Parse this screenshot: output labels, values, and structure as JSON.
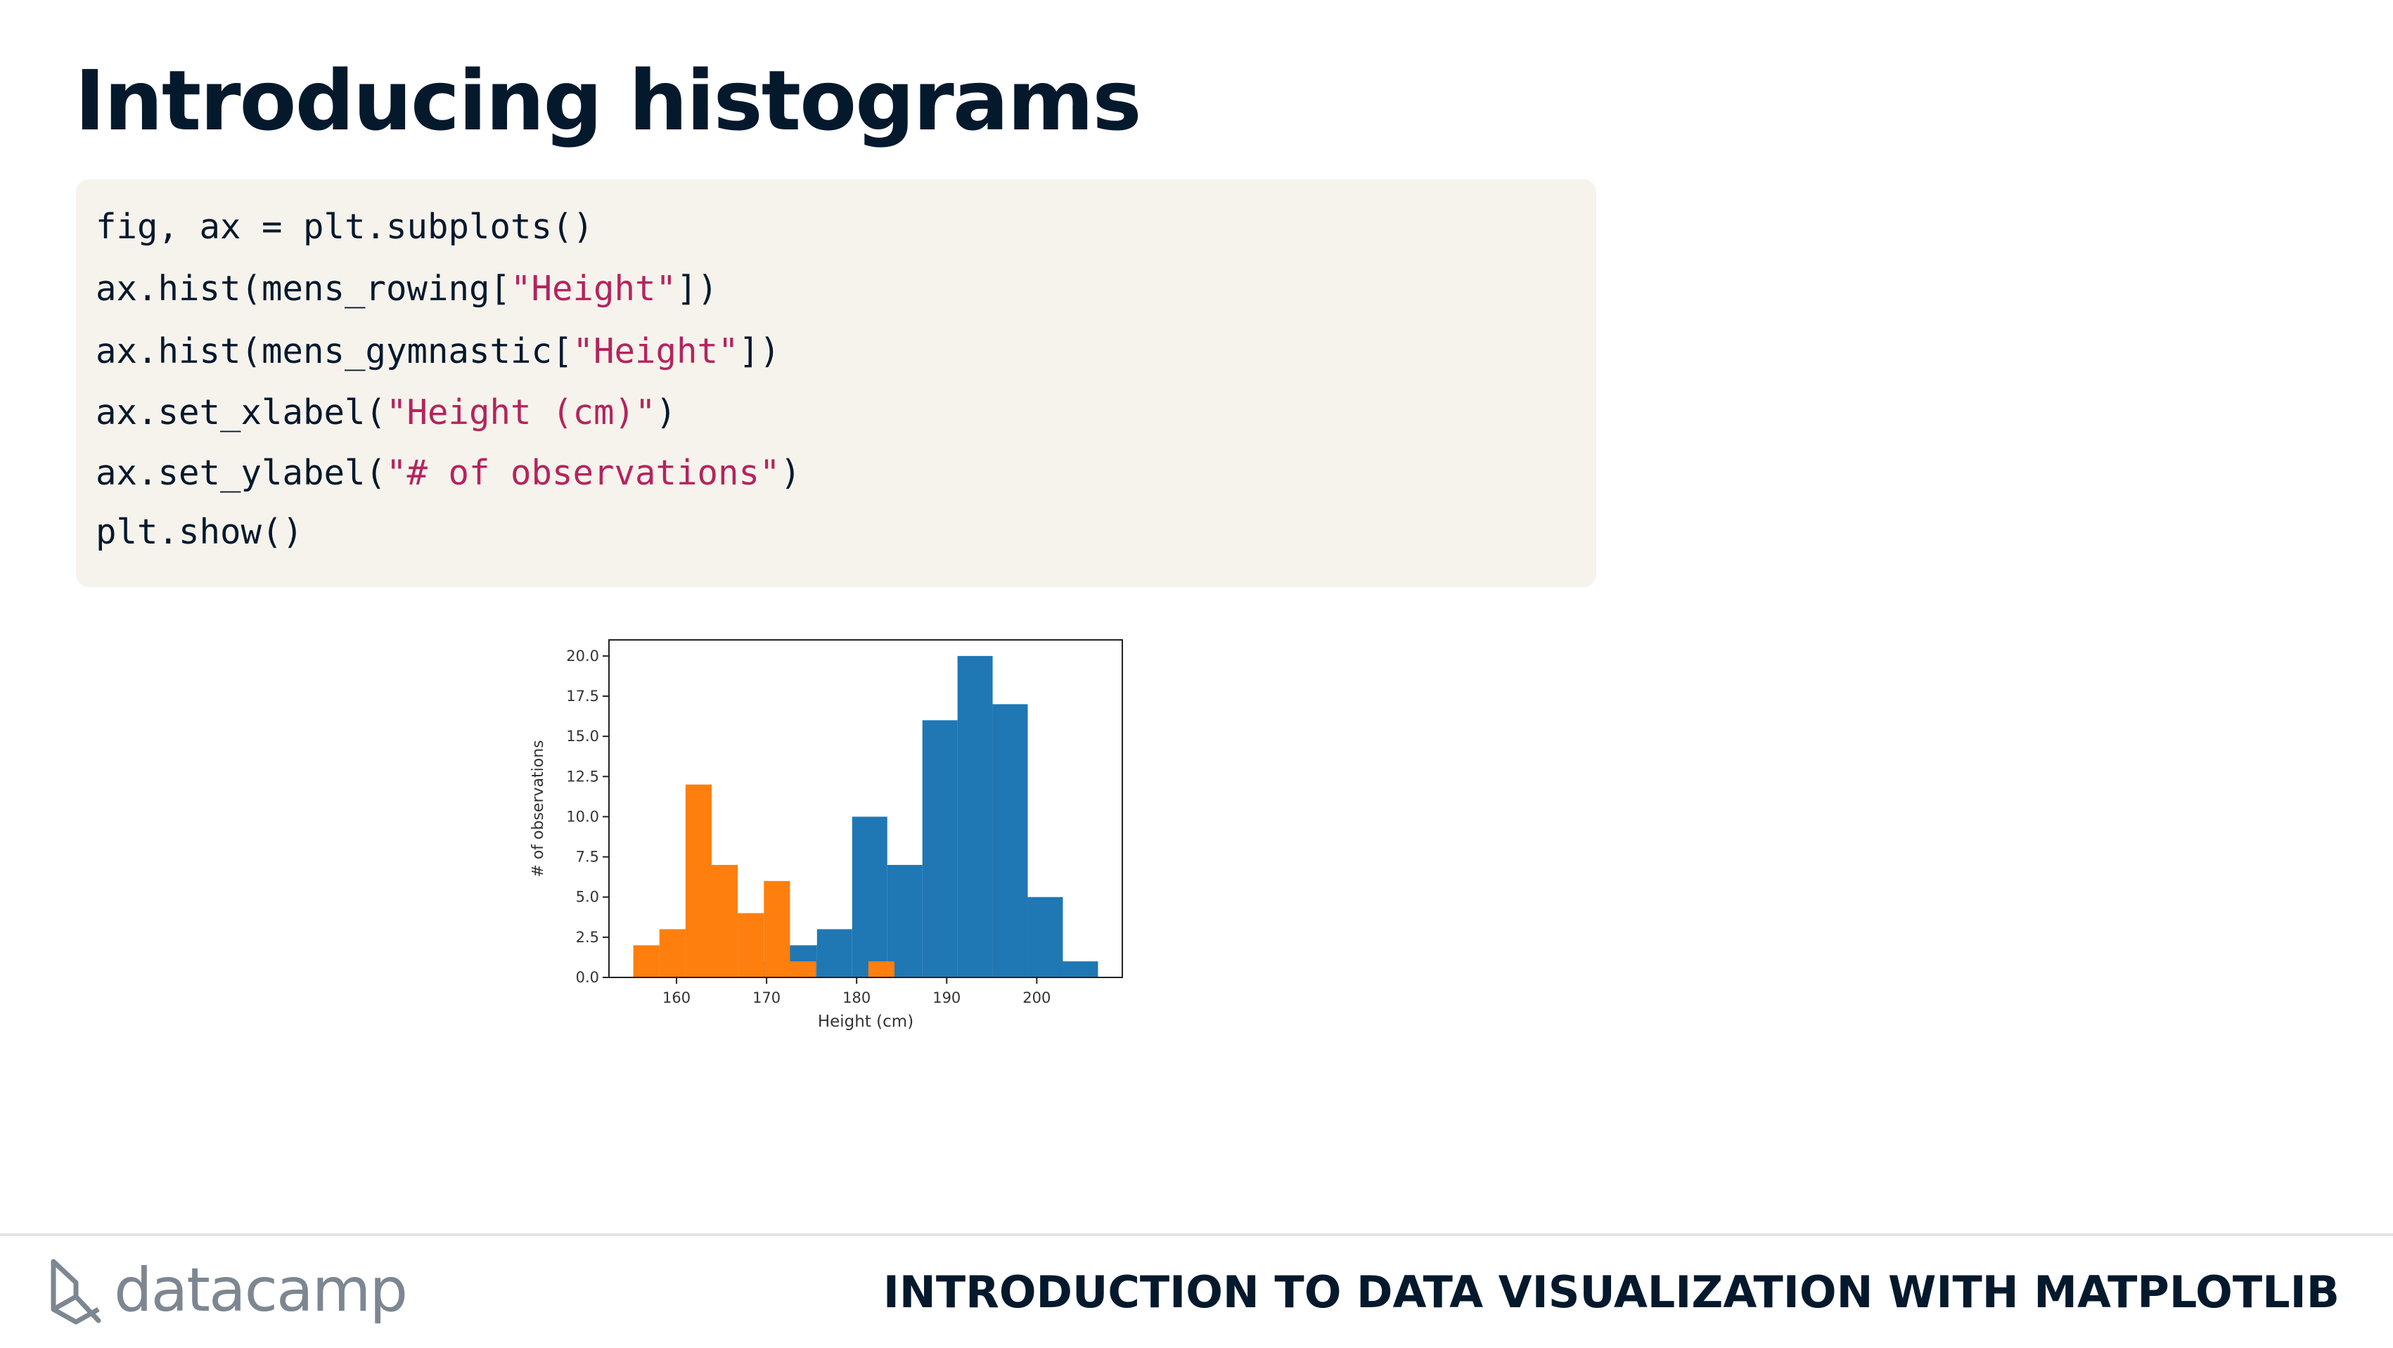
{
  "slide": {
    "title": "Introducing histograms"
  },
  "code": {
    "lines": [
      [
        {
          "t": "fig, ax = plt.subplots()",
          "s": false
        }
      ],
      [
        {
          "t": "ax.hist(mens_rowing[",
          "s": false
        },
        {
          "t": "\"Height\"",
          "s": true
        },
        {
          "t": "])",
          "s": false
        }
      ],
      [
        {
          "t": "ax.hist(mens_gymnastic[",
          "s": false
        },
        {
          "t": "\"Height\"",
          "s": true
        },
        {
          "t": "])",
          "s": false
        }
      ],
      [
        {
          "t": "ax.set_xlabel(",
          "s": false
        },
        {
          "t": "\"Height (cm)\"",
          "s": true
        },
        {
          "t": ")",
          "s": false
        }
      ],
      [
        {
          "t": "ax.set_ylabel(",
          "s": false
        },
        {
          "t": "\"# of observations\"",
          "s": true
        },
        {
          "t": ")",
          "s": false
        }
      ],
      [
        {
          "t": "plt.show()",
          "s": false
        }
      ]
    ]
  },
  "chart_data": {
    "type": "bar",
    "subtype": "histogram",
    "xlabel": "Height (cm)",
    "ylabel": "# of observations",
    "xlim": [
      152.5,
      209.5
    ],
    "ylim": [
      0,
      21
    ],
    "xticks": [
      160,
      170,
      180,
      190,
      200
    ],
    "yticks": [
      0.0,
      2.5,
      5.0,
      7.5,
      10.0,
      12.5,
      15.0,
      17.5,
      20.0
    ],
    "grid": false,
    "legend": "none",
    "series": [
      {
        "color": "#1f77b4",
        "bin_edges": [
          168.0,
          172.0,
          175.6,
          179.5,
          183.4,
          187.3,
          191.2,
          195.1,
          199.0,
          202.9,
          206.8
        ],
        "counts": [
          1,
          2,
          3,
          10,
          7,
          16,
          20,
          17,
          5,
          1
        ]
      },
      {
        "color": "#ff7f0e",
        "bin_edges": [
          155.2,
          158.1,
          161.0,
          163.9,
          166.8,
          169.7,
          172.6,
          175.5,
          178.4,
          181.3,
          184.2
        ],
        "counts": [
          2,
          3,
          12,
          7,
          4,
          6,
          1,
          0,
          0,
          1
        ]
      }
    ]
  },
  "footer": {
    "brand": "datacamp",
    "brand_icon": "datacamp-logo-icon",
    "course_title": "INTRODUCTION TO DATA VISUALIZATION WITH MATPLOTLIB"
  }
}
